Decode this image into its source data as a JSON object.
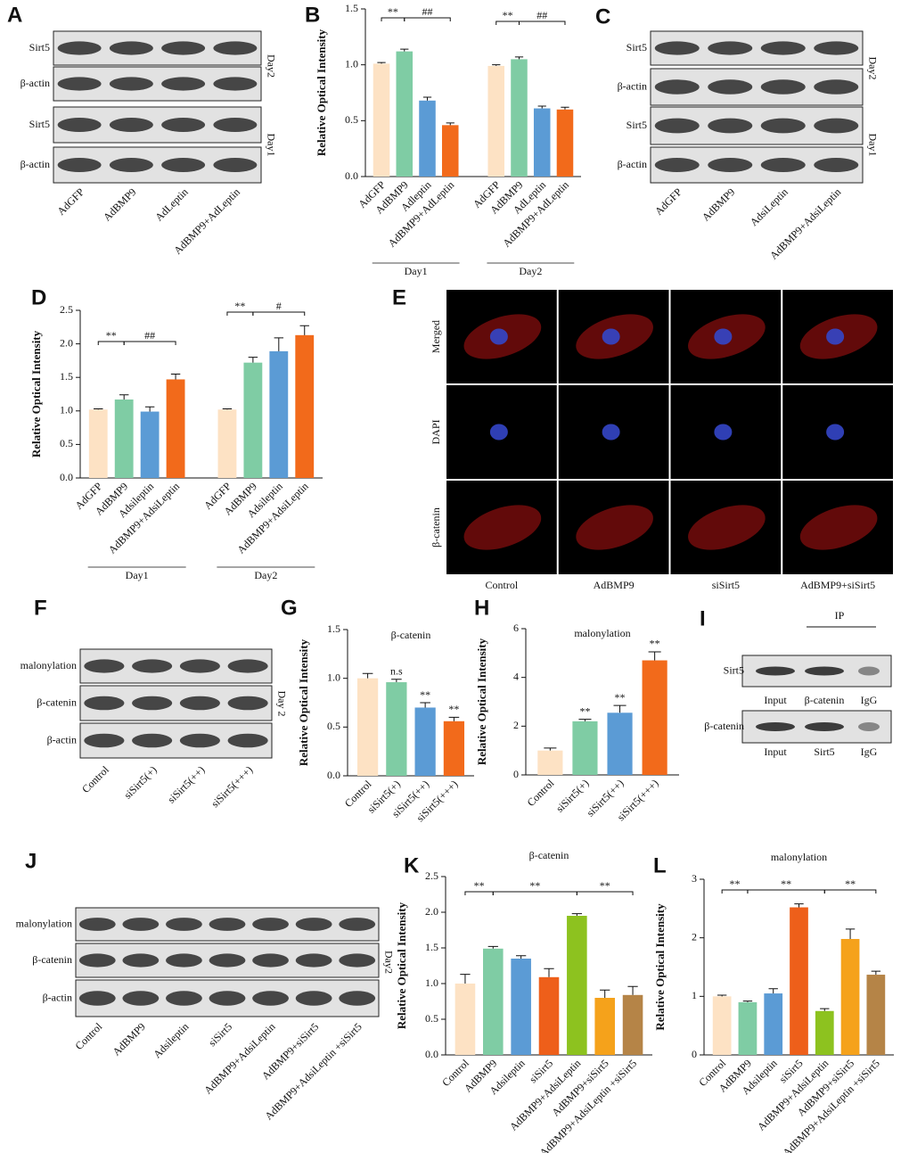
{
  "blots": [
    {
      "panel": "A",
      "rows": [
        "Sirt5",
        "β-actin",
        "Sirt5",
        "β-actin"
      ],
      "sides": [
        "Day2",
        "Day1"
      ],
      "lanes": [
        "AdGFP",
        "AdBMP9",
        "AdLeptin",
        "AdBMP9+AdLeptin"
      ]
    },
    {
      "panel": "C",
      "rows": [
        "Sirt5",
        "β-actin",
        "Sirt5",
        "β-actin"
      ],
      "sides": [
        "Day2",
        "Day1"
      ],
      "lanes": [
        "AdGFP",
        "AdBMP9",
        "AdsiLeptin",
        "AdBMP9+AdsiLeptin"
      ]
    },
    {
      "panel": "F",
      "rows": [
        "malonylation",
        "β-catenin",
        "β-actin"
      ],
      "sides": [
        "Day 2"
      ],
      "lanes": [
        "Control",
        "siSirt5(+)",
        "siSirt5(++)",
        "siSirt5(+++)"
      ]
    },
    {
      "panel": "J",
      "rows": [
        "malonylation",
        "β-catenin",
        "β-actin"
      ],
      "sides": [
        "Day2"
      ],
      "lanes": [
        "Control",
        "AdBMP9",
        "Adsileptin",
        "siSirt5",
        "AdBMP9+AdsiLeptin",
        "AdBMP9+siSirt5",
        "AdBMP9+AdsiLeptin +siSirt5"
      ]
    }
  ],
  "immunofluorescence": {
    "panel": "E",
    "rows": [
      "Merged",
      "DAPI",
      "β-catenin"
    ],
    "columns": [
      "Control",
      "AdBMP9",
      "siSirt5",
      "AdBMP9+siSirt5"
    ]
  },
  "ip": {
    "panel": "I",
    "header": "IP",
    "rows": [
      {
        "label": "Sirt5",
        "lanes": [
          "Input",
          "β-catenin",
          "IgG"
        ]
      },
      {
        "label": "β-catenin",
        "lanes": [
          "Input",
          "Sirt5",
          "IgG"
        ]
      }
    ]
  },
  "chart_data": [
    {
      "type": "bar",
      "panel": "B",
      "ylabel": "Relative Optical Intensity",
      "categories": [
        "AdGFP",
        "AdBMP9",
        "Adleptin",
        "AdBMP9+AdLeptin",
        "AdGFP",
        "AdBMP9",
        "AdLeptin",
        "AdBMP9+AdLeptin"
      ],
      "values": [
        1.01,
        1.12,
        0.68,
        0.46,
        0.99,
        1.05,
        0.61,
        0.6
      ],
      "errors": [
        0.01,
        0.02,
        0.03,
        0.02,
        0.01,
        0.02,
        0.02,
        0.02
      ],
      "colors": [
        "#fde2c4",
        "#7fcca4",
        "#5b9bd5",
        "#f26a1b",
        "#fde2c4",
        "#7fcca4",
        "#5b9bd5",
        "#f26a1b"
      ],
      "ylim": [
        0,
        1.5
      ],
      "yticks": [
        {
          "value": 0,
          "label": "0.0"
        },
        {
          "value": 0.5,
          "label": "0.5"
        },
        {
          "value": 1,
          "label": "1.0"
        },
        {
          "value": 1.5,
          "label": "1.5"
        }
      ],
      "group_labels": [
        "Day1",
        "Day2"
      ],
      "annotations": [
        "**",
        "##",
        "**",
        "##"
      ]
    },
    {
      "type": "bar",
      "panel": "D",
      "ylabel": "Relative Optical Intensity",
      "categories": [
        "AdGFP",
        "AdBMP9",
        "Adsileptin",
        "AdBMP9+AdsiLeptin",
        "AdGFP",
        "AdBMP9",
        "Adsileptin",
        "AdBMP9+AdsiLeptin"
      ],
      "values": [
        1.02,
        1.17,
        0.99,
        1.47,
        1.02,
        1.72,
        1.89,
        2.13
      ],
      "errors": [
        0.01,
        0.07,
        0.07,
        0.08,
        0.01,
        0.08,
        0.2,
        0.14
      ],
      "colors": [
        "#fde2c4",
        "#7fcca4",
        "#5b9bd5",
        "#f26a1b",
        "#fde2c4",
        "#7fcca4",
        "#5b9bd5",
        "#f26a1b"
      ],
      "ylim": [
        0,
        2.5
      ],
      "yticks": [
        {
          "value": 0,
          "label": "0.0"
        },
        {
          "value": 0.5,
          "label": "0.5"
        },
        {
          "value": 1,
          "label": "1.0"
        },
        {
          "value": 1.5,
          "label": "1.5"
        },
        {
          "value": 2,
          "label": "2.0"
        },
        {
          "value": 2.5,
          "label": "2.5"
        }
      ],
      "group_labels": [
        "Day1",
        "Day2"
      ],
      "annotations": [
        "**",
        "##",
        "**",
        "#"
      ]
    },
    {
      "type": "bar",
      "panel": "G",
      "title": "β-catenin",
      "ylabel": "Relative Optical Intensity",
      "categories": [
        "Control",
        "siSirt5(+)",
        "siSirt5(++)",
        "siSirt5(+++)"
      ],
      "values": [
        1.0,
        0.96,
        0.7,
        0.56
      ],
      "errors": [
        0.05,
        0.03,
        0.05,
        0.04
      ],
      "colors": [
        "#fde2c4",
        "#7fcca4",
        "#5b9bd5",
        "#f26a1b"
      ],
      "ylim": [
        0,
        1.5
      ],
      "yticks": [
        {
          "value": 0,
          "label": "0.0"
        },
        {
          "value": 0.5,
          "label": "0.5"
        },
        {
          "value": 1,
          "label": "1.0"
        },
        {
          "value": 1.5,
          "label": "1.5"
        }
      ],
      "annotations": [
        "n.s",
        "**",
        "**"
      ]
    },
    {
      "type": "bar",
      "panel": "H",
      "title": "malonylation",
      "ylabel": "Relative Optical Intensity",
      "categories": [
        "Control",
        "siSirt5(+)",
        "siSirt5(++)",
        "siSirt5(+++)"
      ],
      "values": [
        1.0,
        2.2,
        2.55,
        4.7
      ],
      "errors": [
        0.1,
        0.08,
        0.3,
        0.35
      ],
      "colors": [
        "#fde2c4",
        "#7fcca4",
        "#5b9bd5",
        "#f26a1b"
      ],
      "ylim": [
        0,
        6
      ],
      "yticks": [
        0,
        2,
        4,
        6
      ],
      "annotations": [
        "**",
        "**",
        "**"
      ]
    },
    {
      "type": "bar",
      "panel": "K",
      "title": "β-catenin",
      "ylabel": "Relative Optical Intensity",
      "categories": [
        "Control",
        "AdBMP9",
        "Adsileptin",
        "siSirt5",
        "AdBMP9+AdsiLeptin",
        "AdBMP9+siSirt5",
        "AdBMP9+AdsiLeptin +siSirt5"
      ],
      "values": [
        1.0,
        1.49,
        1.35,
        1.09,
        1.95,
        0.8,
        0.84
      ],
      "errors": [
        0.13,
        0.03,
        0.04,
        0.12,
        0.03,
        0.11,
        0.12
      ],
      "colors": [
        "#fde2c4",
        "#7fcca4",
        "#5b9bd5",
        "#ee5f1a",
        "#8dc21f",
        "#f5a21b",
        "#b58447"
      ],
      "ylim": [
        0,
        2.5
      ],
      "yticks": [
        {
          "value": 0,
          "label": "0.0"
        },
        {
          "value": 0.5,
          "label": "0.5"
        },
        {
          "value": 1,
          "label": "1.0"
        },
        {
          "value": 1.5,
          "label": "1.5"
        },
        {
          "value": 2,
          "label": "2.0"
        },
        {
          "value": 2.5,
          "label": "2.5"
        }
      ],
      "annotations": [
        "**",
        "**",
        "**"
      ]
    },
    {
      "type": "bar",
      "panel": "L",
      "title": "malonylation",
      "ylabel": "Relative Optical Intensity",
      "categories": [
        "Control",
        "AdBMP9",
        "Adsileptin",
        "siSirt5",
        "AdBMP9+AdsiLeptin",
        "AdBMP9+siSirt5",
        "AdBMP9+AdsiLeptin +siSirt5"
      ],
      "values": [
        1.0,
        0.9,
        1.05,
        2.52,
        0.75,
        1.98,
        1.37
      ],
      "errors": [
        0.02,
        0.02,
        0.08,
        0.06,
        0.04,
        0.17,
        0.06
      ],
      "colors": [
        "#fde2c4",
        "#7fcca4",
        "#5b9bd5",
        "#ee5f1a",
        "#8dc21f",
        "#f5a21b",
        "#b58447"
      ],
      "ylim": [
        0,
        3
      ],
      "yticks": [
        0,
        1,
        2,
        3
      ],
      "annotations": [
        "**",
        "**",
        "**"
      ]
    }
  ]
}
